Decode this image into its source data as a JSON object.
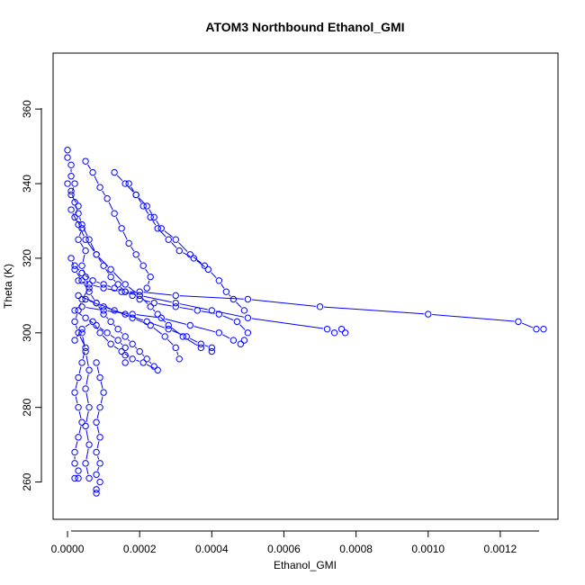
{
  "chart_data": {
    "type": "line",
    "title": "ATOM3 Northbound Ethanol_GMI",
    "xlabel": "Ethanol_GMI",
    "ylabel": "Theta (K)",
    "xlim": [
      -4e-05,
      0.00136
    ],
    "ylim": [
      250,
      375
    ],
    "xticks": [
      0,
      0.0002,
      0.0004,
      0.0006,
      0.0008,
      0.001,
      0.0012
    ],
    "xtick_labels": [
      "0.0000",
      "0.0002",
      "0.0004",
      "0.0006",
      "0.0008",
      "0.0010",
      "0.0012"
    ],
    "yticks": [
      260,
      280,
      300,
      320,
      340,
      360
    ],
    "ytick_labels": [
      "260",
      "280",
      "300",
      "320",
      "340",
      "360"
    ],
    "grid": false,
    "marker": "open-circle",
    "series_color": "#0000ff",
    "series": [
      {
        "x": [
          0.0,
          0.0,
          1e-05,
          1e-05,
          2e-05,
          1e-05,
          3e-05,
          2e-05,
          4e-05,
          3e-05,
          5e-05,
          4e-05,
          5e-05,
          6e-05,
          4e-05,
          3e-05,
          2e-05,
          3e-05,
          5e-05,
          4e-05,
          3e-05,
          2e-05,
          3e-05,
          4e-05,
          3e-05,
          2e-05,
          2e-05,
          3e-05,
          2e-05,
          3e-05
        ],
        "y": [
          349,
          347,
          345,
          342,
          340,
          337,
          334,
          331,
          328,
          325,
          322,
          318,
          315,
          312,
          309,
          306,
          303,
          300,
          296,
          292,
          288,
          284,
          280,
          276,
          272,
          268,
          265,
          263,
          261,
          261
        ]
      },
      {
        "x": [
          0.0,
          1e-05,
          2e-05,
          3e-05,
          4e-05,
          6e-05,
          8e-05,
          0.0001,
          0.00012,
          0.00014,
          0.00016,
          0.00018,
          0.0002,
          0.00024,
          0.0003,
          0.00036,
          0.00042,
          0.00047,
          0.0005
        ],
        "y": [
          340,
          338,
          335,
          332,
          329,
          325,
          321,
          318,
          315,
          313,
          311,
          310,
          309,
          308,
          307,
          306,
          305,
          303,
          300
        ]
      },
      {
        "x": [
          1e-05,
          3e-05,
          5e-05,
          8e-05,
          0.00012,
          0.00016,
          0.0002,
          0.00023,
          0.00025,
          0.00028,
          0.00032,
          0.00037
        ],
        "y": [
          333,
          329,
          325,
          321,
          317,
          313,
          310,
          307,
          305,
          302,
          299,
          296
        ]
      },
      {
        "x": [
          2e-05,
          4e-05,
          7e-05,
          0.0001,
          0.00013,
          0.00016,
          0.0002,
          0.0003,
          0.0005,
          0.0007,
          0.001,
          0.00125,
          0.0013,
          0.00132
        ],
        "y": [
          318,
          316,
          314,
          313,
          312,
          311,
          311,
          310,
          309,
          307,
          305,
          303,
          301,
          301
        ]
      },
      {
        "x": [
          3e-05,
          6e-05,
          0.0001,
          0.00015,
          0.0002,
          0.0003,
          0.0004,
          0.0005,
          0.00072,
          0.00074,
          0.00076,
          0.00077
        ],
        "y": [
          314,
          313,
          312,
          311,
          310,
          308,
          306,
          304,
          301,
          300,
          301,
          300
        ]
      },
      {
        "x": [
          1e-05,
          2e-05,
          4e-05,
          6e-05,
          8e-05,
          0.0001,
          0.00012,
          0.00014,
          0.00016,
          0.00018,
          0.0002,
          0.00022,
          0.00024
        ],
        "y": [
          320,
          317,
          314,
          311,
          308,
          305,
          303,
          301,
          299,
          297,
          295,
          293,
          291
        ]
      },
      {
        "x": [
          5e-05,
          7e-05,
          9e-05,
          0.00011,
          0.00013,
          0.00015,
          0.00017,
          0.00019,
          0.00021,
          0.00023,
          0.00022
        ],
        "y": [
          346,
          343,
          339,
          336,
          332,
          328,
          324,
          321,
          318,
          315,
          312
        ]
      },
      {
        "x": [
          0.00013,
          0.00016,
          0.00019,
          0.00022,
          0.00024,
          0.00026,
          0.0003,
          0.00034,
          0.00038
        ],
        "y": [
          343,
          340,
          337,
          334,
          331,
          328,
          325,
          321,
          318
        ]
      },
      {
        "x": [
          0.00017,
          0.00019,
          0.00021,
          0.00023,
          0.00025,
          0.00028,
          0.00031,
          0.00035,
          0.00039,
          0.00042,
          0.00044,
          0.00046,
          0.00049
        ],
        "y": [
          340,
          337,
          334,
          331,
          328,
          325,
          322,
          320,
          317,
          314,
          311,
          309,
          306
        ]
      },
      {
        "x": [
          8e-05,
          9e-05,
          0.0001,
          9e-05,
          8e-05,
          9e-05,
          8e-05,
          9e-05,
          8e-05,
          9e-05,
          8e-05,
          8e-05
        ],
        "y": [
          292,
          288,
          284,
          280,
          276,
          272,
          268,
          265,
          262,
          260,
          258,
          257
        ]
      },
      {
        "x": [
          4e-05,
          5e-05,
          6e-05,
          5e-05,
          6e-05,
          5e-05,
          6e-05,
          5e-05,
          6e-05
        ],
        "y": [
          300,
          295,
          290,
          285,
          280,
          275,
          270,
          265,
          261
        ]
      },
      {
        "x": [
          2e-05,
          4e-05,
          7e-05,
          9e-05,
          0.00012,
          0.00015,
          0.00018,
          0.00021,
          0.00025
        ],
        "y": [
          298,
          301,
          303,
          300,
          297,
          295,
          293,
          292,
          290
        ]
      },
      {
        "x": [
          2e-05,
          5e-05,
          8e-05,
          0.00011,
          0.00014,
          0.00016,
          0.00016,
          0.00016
        ],
        "y": [
          306,
          304,
          302,
          300,
          298,
          296,
          294,
          292
        ]
      },
      {
        "x": [
          3e-05,
          8e-05,
          0.00013,
          0.00018,
          0.00023,
          0.00027,
          0.0003,
          0.00031
        ],
        "y": [
          310,
          308,
          306,
          304,
          302,
          299,
          296,
          293
        ]
      },
      {
        "x": [
          5e-05,
          0.0001,
          0.00016,
          0.00022,
          0.00028,
          0.00033,
          0.00037,
          0.0004,
          0.0004
        ],
        "y": [
          309,
          307,
          305,
          303,
          301,
          299,
          297,
          296,
          295
        ]
      },
      {
        "x": [
          4e-05,
          0.0001,
          0.00018,
          0.00026,
          0.00034,
          0.00042,
          0.00046,
          0.00048,
          0.00049
        ],
        "y": [
          307,
          306,
          305,
          304,
          302,
          300,
          298,
          297,
          298
        ]
      }
    ]
  }
}
